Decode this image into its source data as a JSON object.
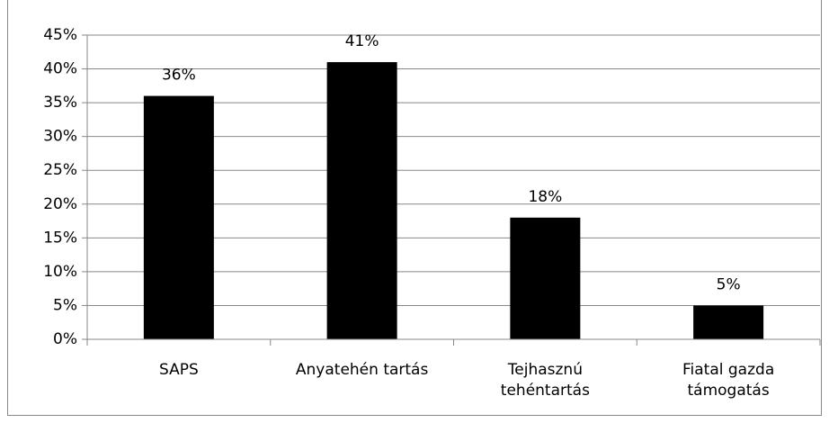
{
  "chart_data": {
    "type": "bar",
    "categories": [
      "SAPS",
      "Anyatehén tartás",
      "Tejhasznú\ntehéntartás",
      "Fiatal gazda\ntámogatás"
    ],
    "values": [
      36,
      41,
      18,
      5
    ],
    "value_labels": [
      "36%",
      "41%",
      "18%",
      "5%"
    ],
    "color": "#000000",
    "ylim": [
      0,
      45
    ],
    "yticks": [
      {
        "value": 0,
        "label": "0%"
      },
      {
        "value": 5,
        "label": "5%"
      },
      {
        "value": 10,
        "label": "10%"
      },
      {
        "value": 15,
        "label": "15%"
      },
      {
        "value": 20,
        "label": "20%"
      },
      {
        "value": 25,
        "label": "25%"
      },
      {
        "value": 30,
        "label": "30%"
      },
      {
        "value": 35,
        "label": "35%"
      },
      {
        "value": 40,
        "label": "40%"
      },
      {
        "value": 45,
        "label": "45%"
      }
    ],
    "grid": true
  }
}
